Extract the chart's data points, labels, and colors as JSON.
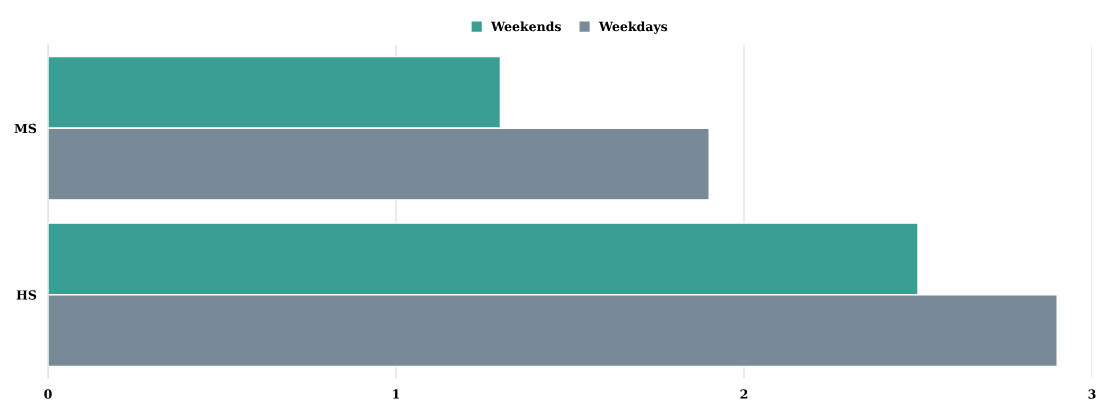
{
  "chart_data": {
    "type": "bar",
    "orientation": "horizontal",
    "categories": [
      "MS",
      "HS"
    ],
    "series": [
      {
        "name": "Weekends",
        "color": "#3a9e94",
        "values": [
          1.3,
          2.5
        ]
      },
      {
        "name": "Weekdays",
        "color": "#798a97",
        "values": [
          1.9,
          2.9
        ]
      }
    ],
    "xlim": [
      0,
      3
    ],
    "xticks": [
      0,
      1,
      2,
      3
    ],
    "grid": "x",
    "legend": "top"
  }
}
